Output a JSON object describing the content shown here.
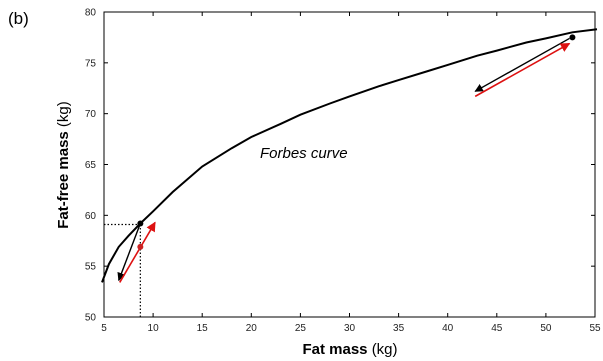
{
  "figure": {
    "panel_label": "(b)"
  },
  "chart_data": {
    "type": "line",
    "xlabel_bold": "Fat mass",
    "xlabel_unit": "(kg)",
    "ylabel_bold": "Fat-free mass",
    "ylabel_unit": "(kg)",
    "xlim": [
      5,
      55
    ],
    "ylim": [
      50,
      80
    ],
    "x_ticks": [
      5,
      10,
      15,
      20,
      25,
      30,
      35,
      40,
      45,
      50,
      55
    ],
    "y_ticks": [
      50,
      55,
      60,
      65,
      70,
      75,
      80
    ],
    "grid": false,
    "legend": "none",
    "annotation": "Forbes curve",
    "series": [
      {
        "x": [
          4.8,
          5.5,
          6.5,
          7.5,
          8.7,
          10,
          12,
          15,
          18,
          20,
          23,
          25,
          28,
          30,
          33,
          35,
          38,
          40,
          43,
          45,
          48,
          50,
          52.7,
          55.2
        ],
        "y": [
          53.4,
          55.2,
          56.9,
          58.0,
          59.2,
          60.4,
          62.3,
          64.8,
          66.6,
          67.7,
          69.0,
          69.9,
          71.0,
          71.7,
          72.7,
          73.3,
          74.2,
          74.8,
          75.7,
          76.2,
          77.0,
          77.4,
          78.0,
          78.3
        ],
        "color": "#000000"
      }
    ],
    "points": [
      {
        "x": 8.7,
        "y": 59.2,
        "color": "#000000"
      },
      {
        "x": 8.7,
        "y": 56.9,
        "color": "#cc2222"
      },
      {
        "x": 52.7,
        "y": 77.5,
        "color": "#000000"
      }
    ],
    "arrows": [
      {
        "from": [
          8.7,
          59.2
        ],
        "to": [
          6.5,
          53.6
        ],
        "color": "#000000"
      },
      {
        "from": [
          6.6,
          53.4
        ],
        "to": [
          10.2,
          59.3
        ],
        "color": "#dd1111"
      },
      {
        "from": [
          52.4,
          77.4
        ],
        "to": [
          42.8,
          72.2
        ],
        "color": "#000000"
      },
      {
        "from": [
          42.8,
          71.7
        ],
        "to": [
          52.4,
          76.9
        ],
        "color": "#dd1111"
      }
    ],
    "reference_lines": [
      {
        "from": [
          5,
          59.1
        ],
        "to": [
          8.7,
          59.1
        ],
        "style": "dotted"
      },
      {
        "from": [
          8.7,
          59.1
        ],
        "to": [
          8.7,
          50
        ],
        "style": "dotted"
      }
    ]
  }
}
